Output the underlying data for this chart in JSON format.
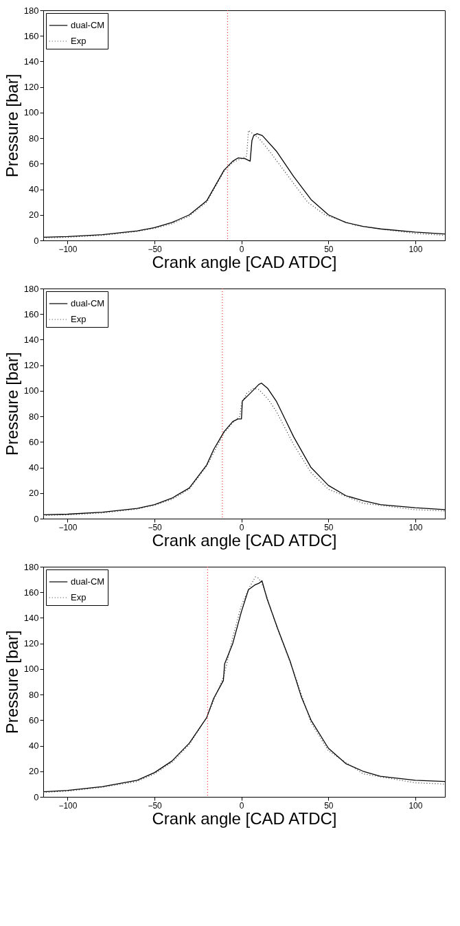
{
  "chart_data": [
    {
      "type": "line",
      "xlabel": "Crank angle [CAD ATDC]",
      "ylabel": "Pressure [bar]",
      "xlim": [
        -114,
        117
      ],
      "ylim": [
        0,
        180
      ],
      "xticks": [
        -100,
        -50,
        0,
        50,
        100
      ],
      "yticks": [
        0,
        20,
        40,
        60,
        80,
        100,
        120,
        140,
        160,
        180
      ],
      "legend": "top left",
      "grid": false,
      "ref_lines": [
        {
          "axis": "x",
          "value": -8,
          "color": "#ff0000",
          "line_style": "dotted"
        }
      ],
      "series": [
        {
          "name": "dual-CM",
          "color": "#000000",
          "line_style": "solid",
          "x": [
            -114,
            -100,
            -80,
            -60,
            -50,
            -40,
            -30,
            -20,
            -10,
            -5,
            -2,
            2,
            5,
            6,
            7,
            9,
            12,
            20,
            30,
            40,
            50,
            60,
            70,
            80,
            100,
            117
          ],
          "values": [
            2.5,
            3,
            4.5,
            7.5,
            10,
            14,
            20,
            31,
            55,
            62,
            64.5,
            64,
            62,
            78,
            82,
            83.5,
            82,
            70,
            50,
            32,
            20,
            14,
            11,
            9,
            6.5,
            5
          ]
        },
        {
          "name": "Exp",
          "color": "#333333",
          "line_style": "dotted",
          "x": [
            -114,
            -100,
            -80,
            -60,
            -50,
            -40,
            -30,
            -20,
            -10,
            -5,
            0,
            3,
            4,
            5,
            10,
            16,
            27,
            38,
            48,
            65,
            85,
            100,
            117
          ],
          "values": [
            2,
            2.5,
            4,
            7,
            9.5,
            13,
            19,
            30,
            54,
            61,
            64,
            66,
            86,
            85,
            80,
            70,
            50,
            30,
            20,
            12,
            8,
            5.5,
            4
          ]
        }
      ]
    },
    {
      "type": "line",
      "xlabel": "Crank angle [CAD ATDC]",
      "ylabel": "Pressure [bar]",
      "xlim": [
        -114,
        117
      ],
      "ylim": [
        0,
        180
      ],
      "xticks": [
        -100,
        -50,
        0,
        50,
        100
      ],
      "yticks": [
        0,
        20,
        40,
        60,
        80,
        100,
        120,
        140,
        160,
        180
      ],
      "legend": "top left",
      "grid": false,
      "ref_lines": [
        {
          "axis": "x",
          "value": -11,
          "color": "#ff0000",
          "line_style": "dotted"
        }
      ],
      "series": [
        {
          "name": "dual-CM",
          "color": "#000000",
          "line_style": "solid",
          "x": [
            -114,
            -100,
            -80,
            -60,
            -50,
            -40,
            -30,
            -20,
            -16,
            -10,
            -5,
            -2,
            0,
            0.5,
            5,
            10,
            11.5,
            15,
            20,
            25,
            30,
            40,
            50,
            60,
            70,
            80,
            100,
            117
          ],
          "values": [
            3,
            3.5,
            5,
            8,
            11,
            16,
            24,
            42,
            54,
            68,
            76,
            78,
            78,
            92,
            98,
            105,
            106,
            102,
            92,
            78,
            64,
            40,
            26,
            18,
            14,
            11,
            8.5,
            7
          ]
        },
        {
          "name": "Exp",
          "color": "#333333",
          "line_style": "dotted",
          "x": [
            -114,
            -100,
            -80,
            -60,
            -50,
            -40,
            -30,
            -20,
            -10,
            -5,
            -1,
            0,
            3,
            7,
            10,
            15,
            20,
            30,
            40,
            50,
            70,
            100,
            117
          ],
          "values": [
            2.5,
            3,
            4.5,
            7.5,
            10.5,
            15,
            23,
            41,
            67,
            75,
            80,
            90,
            98,
            102,
            101,
            94,
            84,
            58,
            36,
            23,
            12,
            7,
            6
          ]
        }
      ]
    },
    {
      "type": "line",
      "xlabel": "Crank angle [CAD ATDC]",
      "ylabel": "Pressure [bar]",
      "xlim": [
        -114,
        117
      ],
      "ylim": [
        0,
        180
      ],
      "xticks": [
        -100,
        -50,
        0,
        50,
        100
      ],
      "yticks": [
        0,
        20,
        40,
        60,
        80,
        100,
        120,
        140,
        160,
        180
      ],
      "legend": "top left",
      "grid": false,
      "ref_lines": [
        {
          "axis": "x",
          "value": -19.5,
          "color": "#ff0000",
          "line_style": "dotted"
        }
      ],
      "series": [
        {
          "name": "dual-CM",
          "color": "#000000",
          "line_style": "solid",
          "x": [
            -114,
            -100,
            -80,
            -60,
            -50,
            -40,
            -30,
            -20,
            -16,
            -12,
            -10.4,
            -9.7,
            -5,
            0,
            4,
            8,
            10,
            11.8,
            14.7,
            21,
            28,
            34.5,
            40,
            50,
            60,
            70,
            80,
            100,
            117
          ],
          "values": [
            4,
            5,
            8,
            13,
            19,
            28,
            42,
            62,
            77,
            87,
            91,
            104,
            120,
            145,
            162,
            166,
            167,
            169,
            155,
            131,
            106,
            78,
            60,
            38,
            26,
            20,
            16,
            13,
            12
          ]
        },
        {
          "name": "Exp",
          "color": "#333333",
          "line_style": "dotted",
          "x": [
            -114,
            -100,
            -80,
            -60,
            -50,
            -40,
            -30,
            -20,
            -10,
            -5,
            0,
            5,
            8,
            10,
            13,
            20,
            30,
            40,
            50,
            70,
            100,
            117
          ],
          "values": [
            3.5,
            4.5,
            7.5,
            12,
            18,
            27,
            41,
            62,
            95,
            125,
            150,
            165,
            172,
            171,
            163,
            134,
            98,
            58,
            36,
            18,
            11,
            10
          ]
        }
      ]
    }
  ]
}
